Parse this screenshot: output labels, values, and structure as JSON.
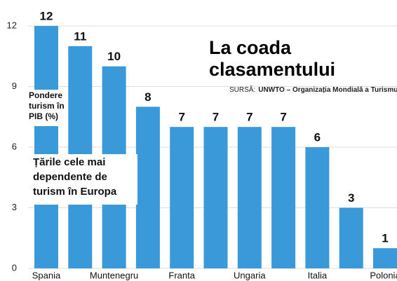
{
  "chart_data": {
    "type": "bar",
    "title": [
      "La coada",
      "clasamentului"
    ],
    "source_label": "SURSĂ:",
    "source": "UNWTO – Organizația Mondială a Turismului",
    "y_label": [
      "Pondere",
      "turism în",
      "PIB (%)"
    ],
    "subtitle": [
      "Țările cele mai",
      "dependente de",
      "turism în Europa"
    ],
    "categories": [
      "Spania",
      null,
      "Muntenegru",
      null,
      "Franta",
      null,
      "Ungaria",
      null,
      "Italia",
      null,
      "Polonia"
    ],
    "values": [
      12,
      11,
      10,
      8,
      7,
      7,
      7,
      7,
      6,
      3,
      1
    ],
    "color": "#3a9ad9",
    "ylim": [
      0,
      12
    ],
    "yticks": [
      0,
      3,
      6,
      9,
      12
    ],
    "grid": true
  }
}
